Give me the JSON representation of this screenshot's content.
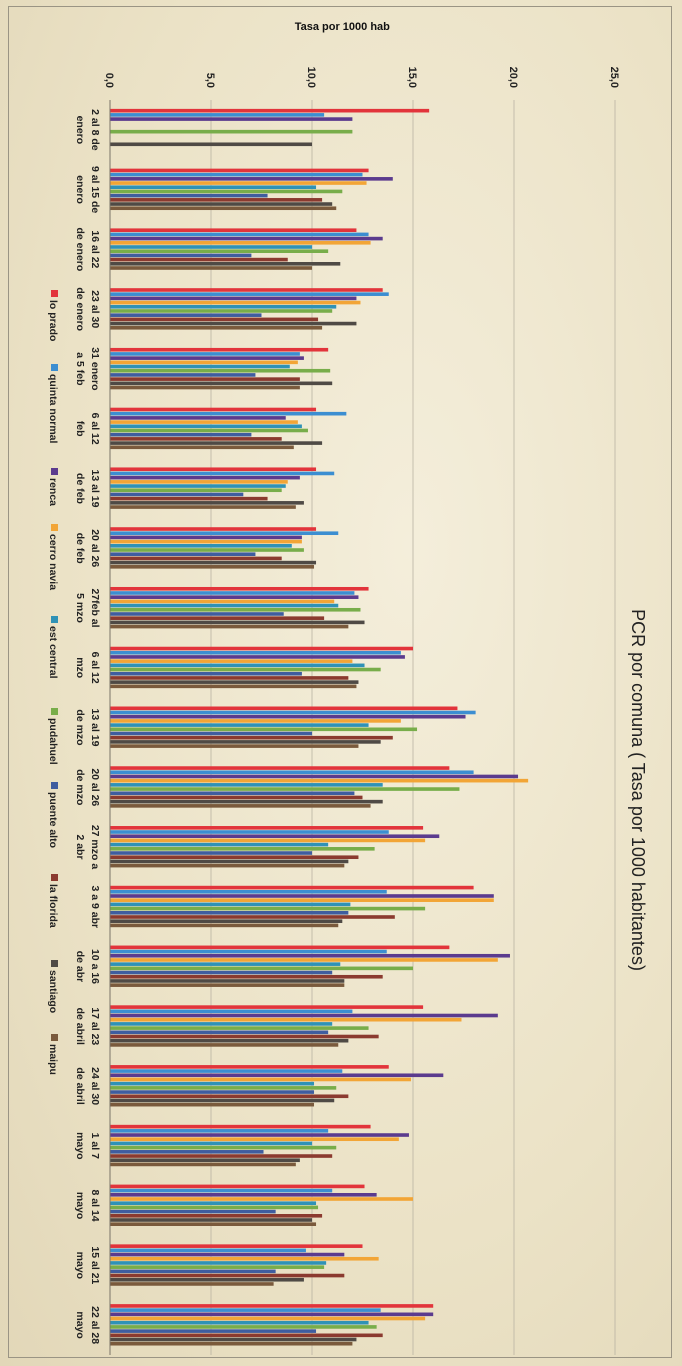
{
  "chart_data": {
    "type": "bar",
    "title": "PCR por comuna ( Tasa por 1000 habitantes)",
    "ylabel": "Tasa  por 1000 hab",
    "xlabel": "",
    "ylim": [
      0,
      25
    ],
    "yticks": [
      "0,0",
      "5,0",
      "10,0",
      "15,0",
      "20,0",
      "25,0"
    ],
    "grid": true,
    "legend_position": "bottom",
    "categories": [
      [
        "2 al 8 de",
        "enero"
      ],
      [
        "9 al 15 de",
        "enero"
      ],
      [
        "16 al 22",
        "de enero"
      ],
      [
        "23 al 30",
        "de enero"
      ],
      [
        "31 enero",
        "a 5 feb"
      ],
      [
        "6 al 12",
        "feb"
      ],
      [
        "13 al 19",
        "de feb"
      ],
      [
        "20 al 26",
        "de feb"
      ],
      [
        "27feb al",
        "5 mzo"
      ],
      [
        "6 al 12",
        "mzo"
      ],
      [
        "13 al 19",
        "de mzo"
      ],
      [
        "20 al 26",
        "de mzo"
      ],
      [
        "27 mzo a",
        "2 abr"
      ],
      [
        "3 a 9 abr",
        ""
      ],
      [
        "10 a 16",
        "de abr"
      ],
      [
        "17 al 23",
        "de abril"
      ],
      [
        "24 al 30",
        "de abril"
      ],
      [
        "1 al 7",
        "mayo"
      ],
      [
        "8 al 14",
        "mayo"
      ],
      [
        "15 al 21",
        "mayo"
      ],
      [
        "22 al 28",
        "mayo"
      ]
    ],
    "series": [
      {
        "name": "lo prado",
        "color": "#e2343b",
        "values": [
          15.8,
          12.8,
          12.2,
          13.5,
          10.8,
          10.2,
          10.2,
          10.2,
          12.8,
          15.0,
          17.2,
          16.8,
          15.5,
          18.0,
          16.8,
          15.5,
          13.8,
          12.9,
          12.6,
          12.5,
          16.0
        ]
      },
      {
        "name": "quinta normal",
        "color": "#3c8ed1",
        "values": [
          10.6,
          12.5,
          12.8,
          13.8,
          9.4,
          11.7,
          11.1,
          11.3,
          12.1,
          14.4,
          18.1,
          18.0,
          13.8,
          13.7,
          13.7,
          12.0,
          11.5,
          10.8,
          11.0,
          9.7,
          13.4
        ]
      },
      {
        "name": "renca",
        "color": "#5b3b8e",
        "values": [
          12.0,
          14.0,
          13.5,
          12.2,
          9.6,
          8.7,
          9.4,
          9.5,
          12.3,
          14.6,
          17.6,
          20.2,
          16.3,
          19.0,
          19.8,
          19.2,
          16.5,
          14.8,
          13.2,
          11.6,
          16.0
        ]
      },
      {
        "name": "cerro navia",
        "color": "#f2a536",
        "values": [
          null,
          12.7,
          12.9,
          12.4,
          9.3,
          9.3,
          8.8,
          9.5,
          11.1,
          12.0,
          14.4,
          20.7,
          15.6,
          19.0,
          19.2,
          17.4,
          14.9,
          14.3,
          15.0,
          13.3,
          15.6
        ]
      },
      {
        "name": "est central",
        "color": "#2f92b6",
        "values": [
          null,
          10.2,
          10.0,
          11.2,
          8.9,
          9.5,
          8.7,
          9.0,
          11.3,
          12.6,
          12.8,
          13.5,
          10.8,
          11.9,
          11.4,
          11.0,
          10.1,
          10.0,
          10.2,
          10.7,
          12.8
        ]
      },
      {
        "name": "pudahuel",
        "color": "#78ad4a",
        "values": [
          12.0,
          11.5,
          10.8,
          11.0,
          10.9,
          9.8,
          8.5,
          9.6,
          12.4,
          13.4,
          15.2,
          17.3,
          13.1,
          15.6,
          15.0,
          12.8,
          11.2,
          11.2,
          10.3,
          10.6,
          13.2
        ]
      },
      {
        "name": "puente alto",
        "color": "#3f5d9f",
        "values": [
          null,
          7.8,
          7.0,
          7.5,
          7.2,
          7.0,
          6.6,
          7.2,
          8.6,
          9.5,
          10.0,
          12.1,
          10.0,
          11.8,
          11.0,
          10.8,
          10.1,
          7.6,
          8.2,
          8.2,
          10.2
        ]
      },
      {
        "name": "la florida",
        "color": "#8b3a2f",
        "values": [
          null,
          10.5,
          8.8,
          10.3,
          9.4,
          8.5,
          7.8,
          8.5,
          10.6,
          11.8,
          14.0,
          12.5,
          12.3,
          14.1,
          13.5,
          13.3,
          11.8,
          11.0,
          10.5,
          11.6,
          13.5
        ]
      },
      {
        "name": "santiago",
        "color": "#4f4a45",
        "values": [
          10.0,
          11.0,
          11.4,
          12.2,
          11.0,
          10.5,
          9.6,
          10.2,
          12.6,
          12.3,
          13.4,
          13.5,
          11.8,
          11.5,
          11.6,
          11.8,
          11.1,
          9.4,
          10.0,
          9.6,
          12.2
        ]
      },
      {
        "name": "maipu",
        "color": "#7a5a3c",
        "values": [
          null,
          11.2,
          10.0,
          10.5,
          9.4,
          9.1,
          9.2,
          10.1,
          11.8,
          12.2,
          12.3,
          12.9,
          11.6,
          11.3,
          11.6,
          11.3,
          10.1,
          9.2,
          10.2,
          8.1,
          12.0
        ]
      }
    ]
  }
}
